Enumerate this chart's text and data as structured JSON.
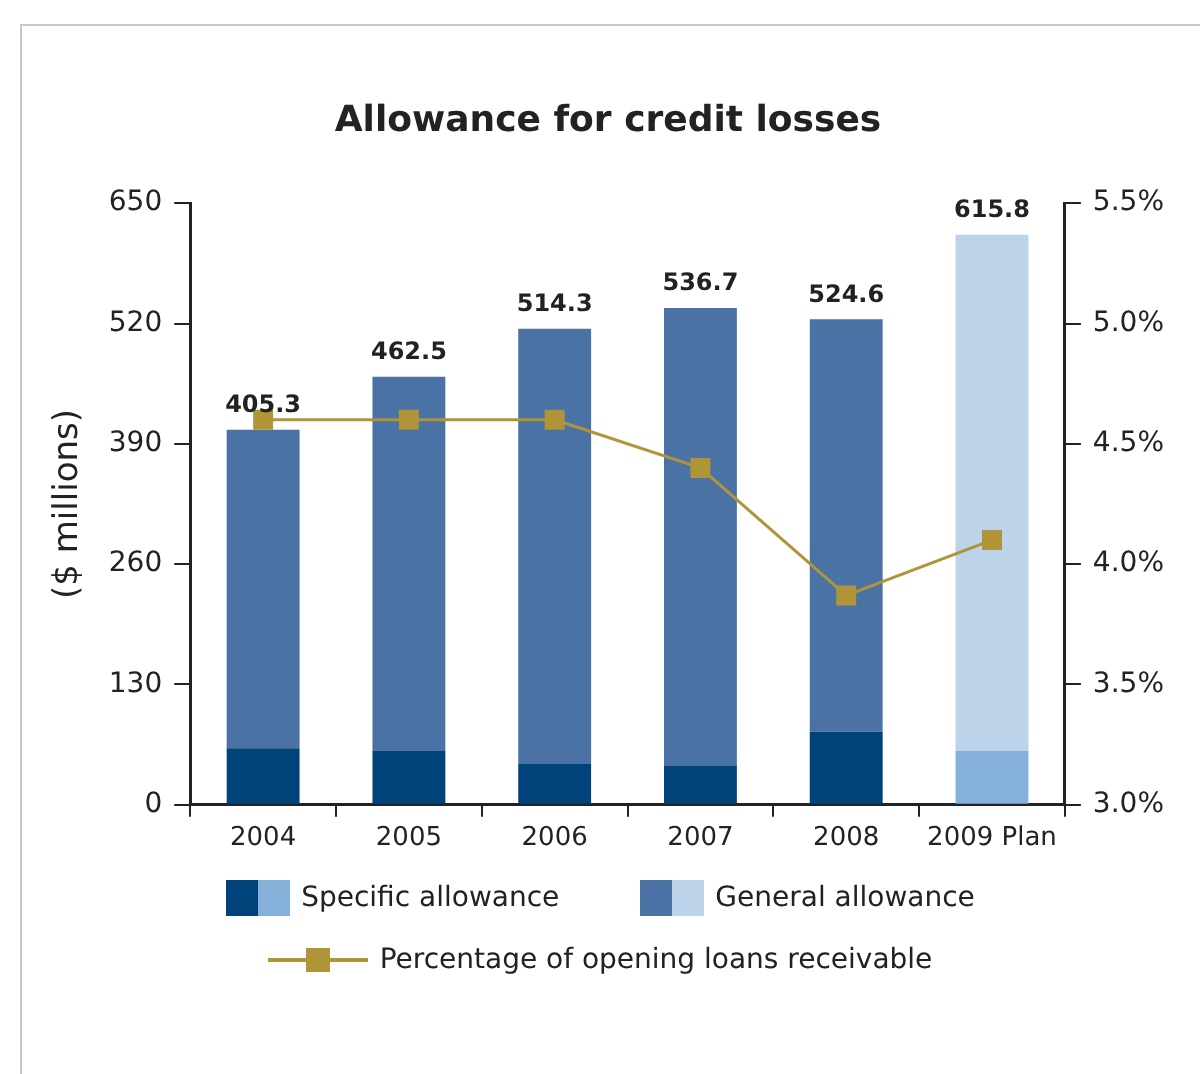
{
  "chart_data": {
    "type": "bar",
    "title": "Allowance for credit losses",
    "ylabel": "($ millions)",
    "categories": [
      "2004",
      "2005",
      "2006",
      "2007",
      "2008",
      "2009 Plan"
    ],
    "stacked": true,
    "series": [
      {
        "name": "Specific allowance",
        "color": "#00427a",
        "colors": [
          "#00427a",
          "#00427a",
          "#00427a",
          "#00427a",
          "#00427a",
          "#85b0d9"
        ],
        "values": [
          61,
          58,
          44,
          42,
          79,
          58
        ]
      },
      {
        "name": "General allowance",
        "color": "#4a72a4",
        "colors": [
          "#4a72a4",
          "#4a72a4",
          "#4a72a4",
          "#4a72a4",
          "#4a72a4",
          "#bcd3ea"
        ],
        "values": [
          344.3,
          404.5,
          470.3,
          494.7,
          445.6,
          557.8
        ]
      },
      {
        "name": "Percentage of opening loans receivable",
        "type": "line",
        "axis": "y2",
        "color": "#b09438",
        "values": [
          4.6,
          4.6,
          4.6,
          4.4,
          3.87,
          4.1
        ]
      }
    ],
    "totals": [
      "405.3",
      "462.5",
      "514.3",
      "536.7",
      "524.6",
      "615.8"
    ],
    "ylim": [
      0,
      650
    ],
    "yticks": [
      0,
      130,
      260,
      390,
      520,
      650
    ],
    "y2lim": [
      3.0,
      5.5
    ],
    "y2ticks": [
      {
        "value": 3.0,
        "label": "3.0%"
      },
      {
        "value": 3.5,
        "label": "3.5%"
      },
      {
        "value": 4.0,
        "label": "4.0%"
      },
      {
        "value": 4.5,
        "label": "4.5%"
      },
      {
        "value": 5.0,
        "label": "5.0%"
      },
      {
        "value": 5.5,
        "label": "5.5%"
      }
    ],
    "marker": "square",
    "line_style": "solid",
    "grid": false,
    "legend": "bottom"
  }
}
